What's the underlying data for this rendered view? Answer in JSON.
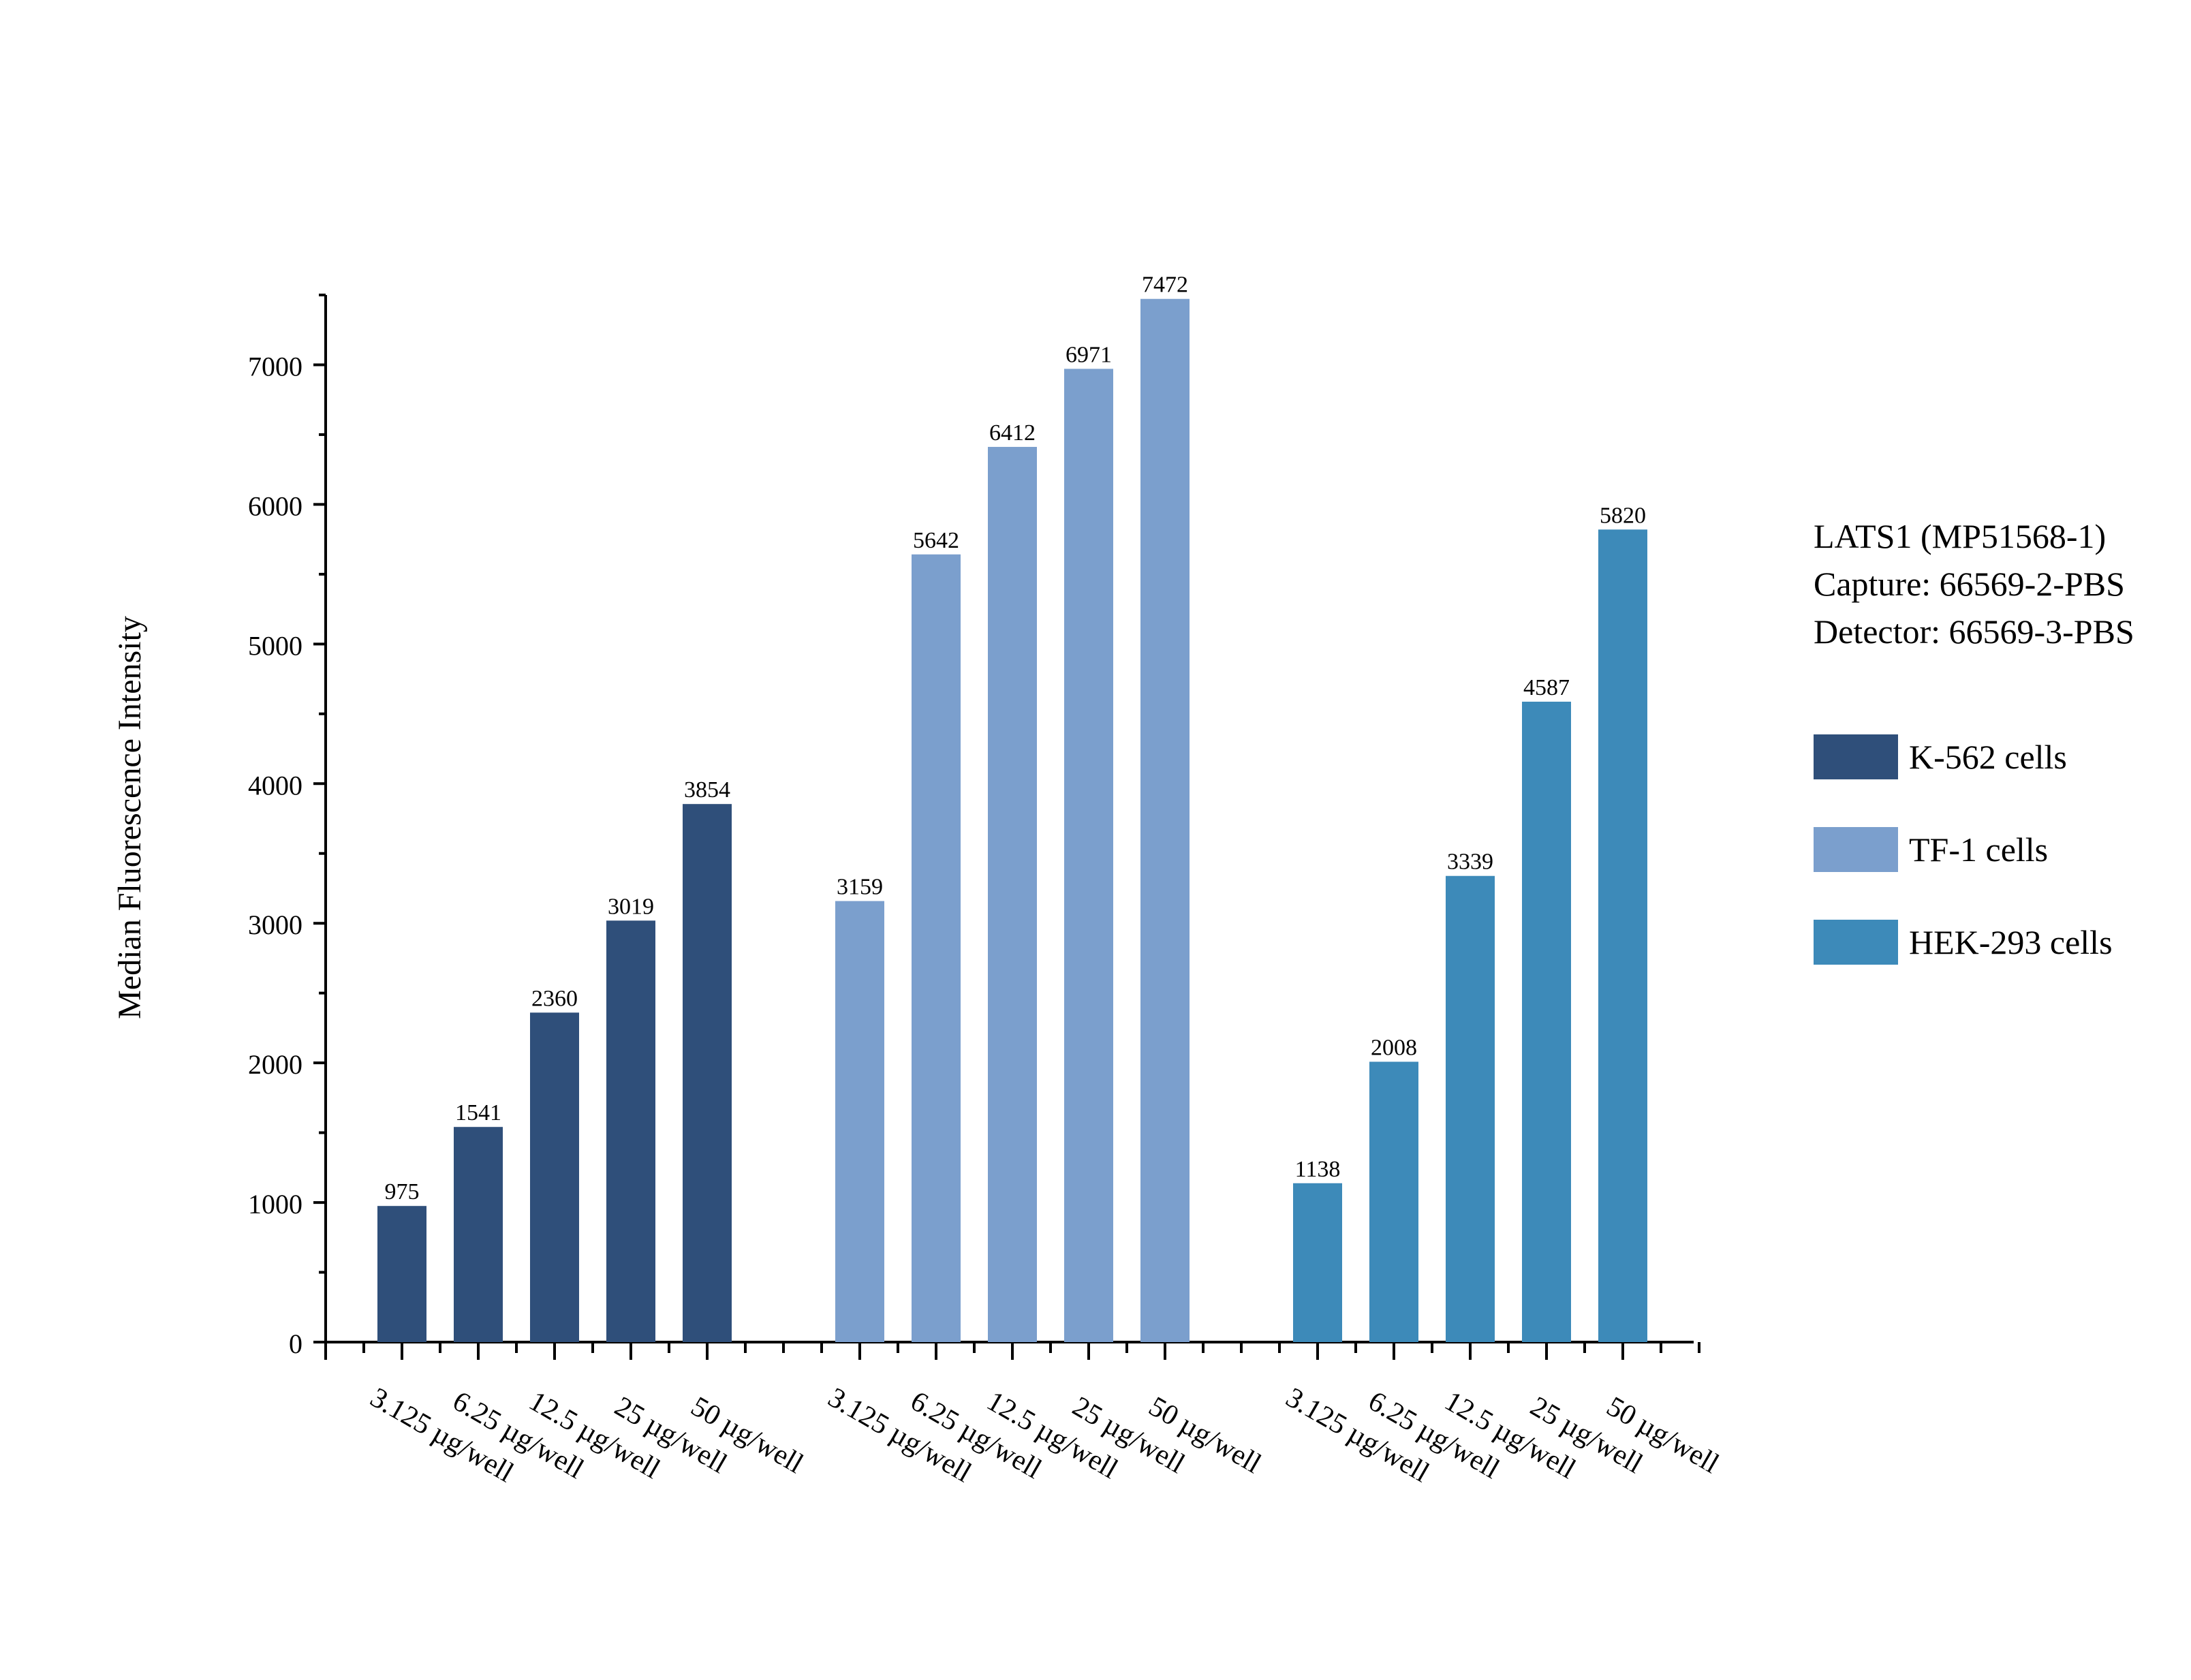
{
  "chart_data": {
    "type": "bar",
    "ylabel": "Median Fluorescence Intensity",
    "ylim": [
      0,
      7500
    ],
    "yticks": [
      0,
      1000,
      2000,
      3000,
      4000,
      5000,
      6000,
      7000
    ],
    "categories": [
      "3.125 µg/well",
      "6.25 µg/well",
      "12.5 µg/well",
      "25 µg/well",
      "50 µg/well"
    ],
    "series": [
      {
        "name": "K-562 cells",
        "color": "#2f4f7a",
        "values": [
          975,
          1541,
          2360,
          3019,
          3854
        ]
      },
      {
        "name": "TF-1 cells",
        "color": "#7b9fcd",
        "values": [
          3159,
          5642,
          6412,
          6971,
          7472
        ]
      },
      {
        "name": "HEK-293 cells",
        "color": "#3d8ab9",
        "values": [
          1138,
          2008,
          3339,
          4587,
          5820
        ]
      }
    ],
    "legend_title": [
      "LATS1 (MP51568-1)",
      "Capture: 66569-2-PBS",
      "Detector: 66569-3-PBS"
    ],
    "legend_position": "right",
    "grid": false
  }
}
